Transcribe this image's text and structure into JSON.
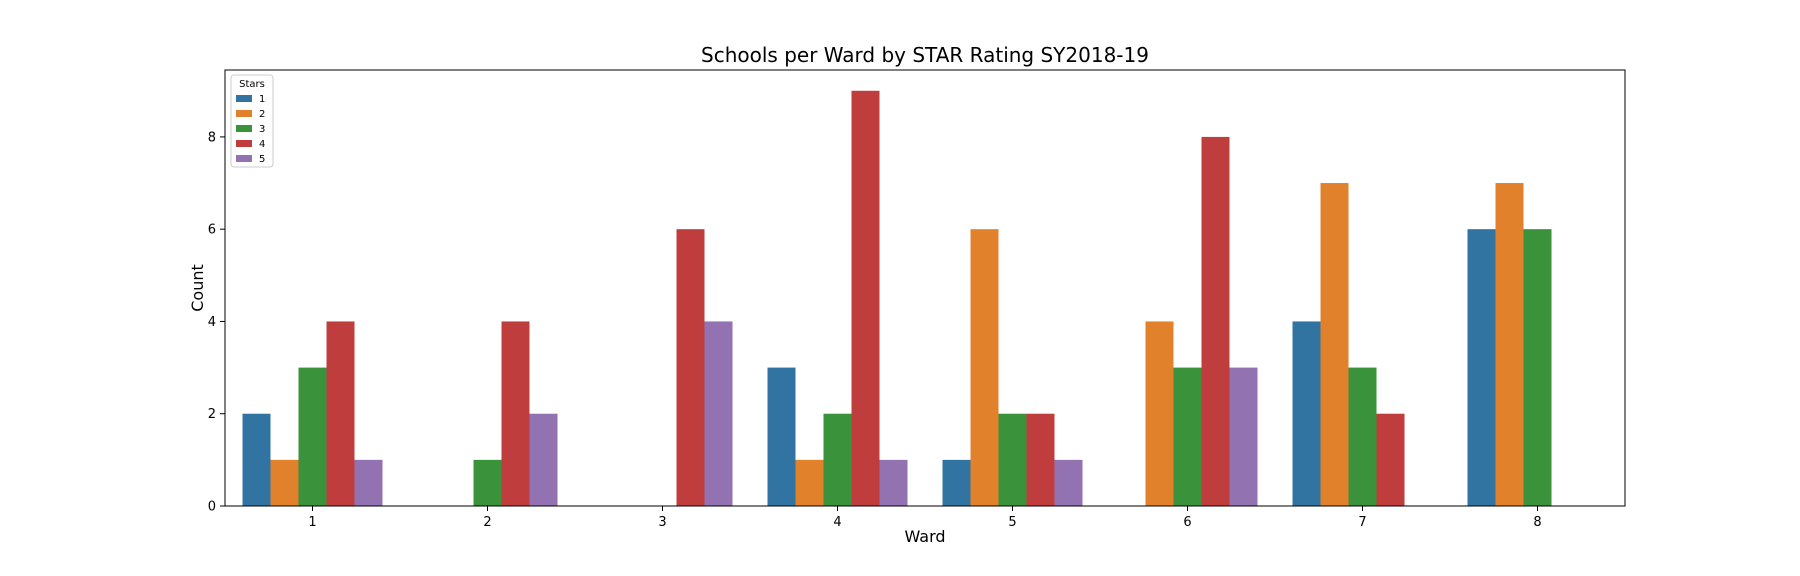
{
  "chart_data": {
    "type": "bar",
    "title": "Schools per Ward by STAR Rating SY2018-19",
    "xlabel": "Ward",
    "ylabel": "Count",
    "categories": [
      "1",
      "2",
      "3",
      "4",
      "5",
      "6",
      "7",
      "8"
    ],
    "ylim": [
      0,
      9.45
    ],
    "yticks": [
      "0",
      "2",
      "4",
      "6",
      "8"
    ],
    "grid": false,
    "legend": {
      "title": "Stars",
      "placement": "top-left"
    },
    "series": [
      {
        "name": "1",
        "color": "#3274a1",
        "values": [
          2,
          0,
          0,
          3,
          1,
          0,
          4,
          6
        ]
      },
      {
        "name": "2",
        "color": "#e1812c",
        "values": [
          1,
          0,
          0,
          1,
          6,
          4,
          7,
          7
        ]
      },
      {
        "name": "3",
        "color": "#3a923a",
        "values": [
          3,
          1,
          0,
          2,
          2,
          3,
          3,
          6
        ]
      },
      {
        "name": "4",
        "color": "#c03d3e",
        "values": [
          4,
          4,
          6,
          9,
          2,
          8,
          2,
          0
        ]
      },
      {
        "name": "5",
        "color": "#9372b2",
        "values": [
          1,
          2,
          4,
          1,
          1,
          3,
          0,
          0
        ]
      }
    ]
  }
}
